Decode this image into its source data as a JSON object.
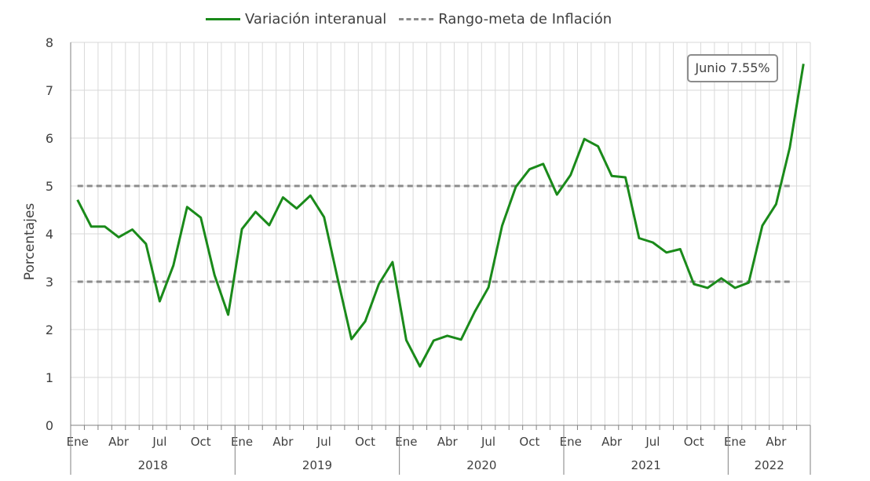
{
  "chart_data": {
    "type": "line",
    "ylabel": "Porcentajes",
    "ylim": [
      0,
      8
    ],
    "yticks": [
      "0",
      "1",
      "2",
      "3",
      "4",
      "5",
      "6",
      "7",
      "8"
    ],
    "grid": true,
    "legend_position": "top",
    "month_tick_labels": [
      "Ene",
      "Abr",
      "Jul",
      "Oct"
    ],
    "year_labels": [
      "2018",
      "2019",
      "2020",
      "2021",
      "2022"
    ],
    "series": [
      {
        "name": "Variación interanual",
        "style": "solid",
        "color": "#1a8a1a",
        "x": [
          "2018-01",
          "2018-02",
          "2018-03",
          "2018-04",
          "2018-05",
          "2018-06",
          "2018-07",
          "2018-08",
          "2018-09",
          "2018-10",
          "2018-11",
          "2018-12",
          "2019-01",
          "2019-02",
          "2019-03",
          "2019-04",
          "2019-05",
          "2019-06",
          "2019-07",
          "2019-08",
          "2019-09",
          "2019-10",
          "2019-11",
          "2019-12",
          "2020-01",
          "2020-02",
          "2020-03",
          "2020-04",
          "2020-05",
          "2020-06",
          "2020-07",
          "2020-08",
          "2020-09",
          "2020-10",
          "2020-11",
          "2020-12",
          "2021-01",
          "2021-02",
          "2021-03",
          "2021-04",
          "2021-05",
          "2021-06",
          "2021-07",
          "2021-08",
          "2021-09",
          "2021-10",
          "2021-11",
          "2021-12",
          "2022-01",
          "2022-02",
          "2022-03",
          "2022-04",
          "2022-05",
          "2022-06"
        ],
        "values": [
          4.71,
          4.15,
          4.15,
          3.93,
          4.09,
          3.79,
          2.59,
          3.34,
          4.56,
          4.34,
          3.14,
          2.31,
          4.1,
          4.46,
          4.18,
          4.76,
          4.53,
          4.8,
          4.35,
          3.05,
          1.8,
          2.17,
          2.95,
          3.41,
          1.78,
          1.23,
          1.77,
          1.87,
          1.79,
          2.37,
          2.88,
          4.17,
          4.98,
          5.35,
          5.46,
          4.82,
          5.23,
          5.98,
          5.83,
          5.21,
          5.18,
          3.91,
          3.82,
          3.61,
          3.68,
          2.95,
          2.87,
          3.07,
          2.87,
          2.98,
          4.17,
          4.62,
          5.8,
          7.55
        ]
      },
      {
        "name": "Rango-meta de Inflación",
        "style": "dashed",
        "color": "#8c8c8c",
        "x_range": [
          "2018-01",
          "2022-05"
        ],
        "values": [
          3,
          5
        ]
      }
    ],
    "annotation": "Junio 7.55%"
  }
}
